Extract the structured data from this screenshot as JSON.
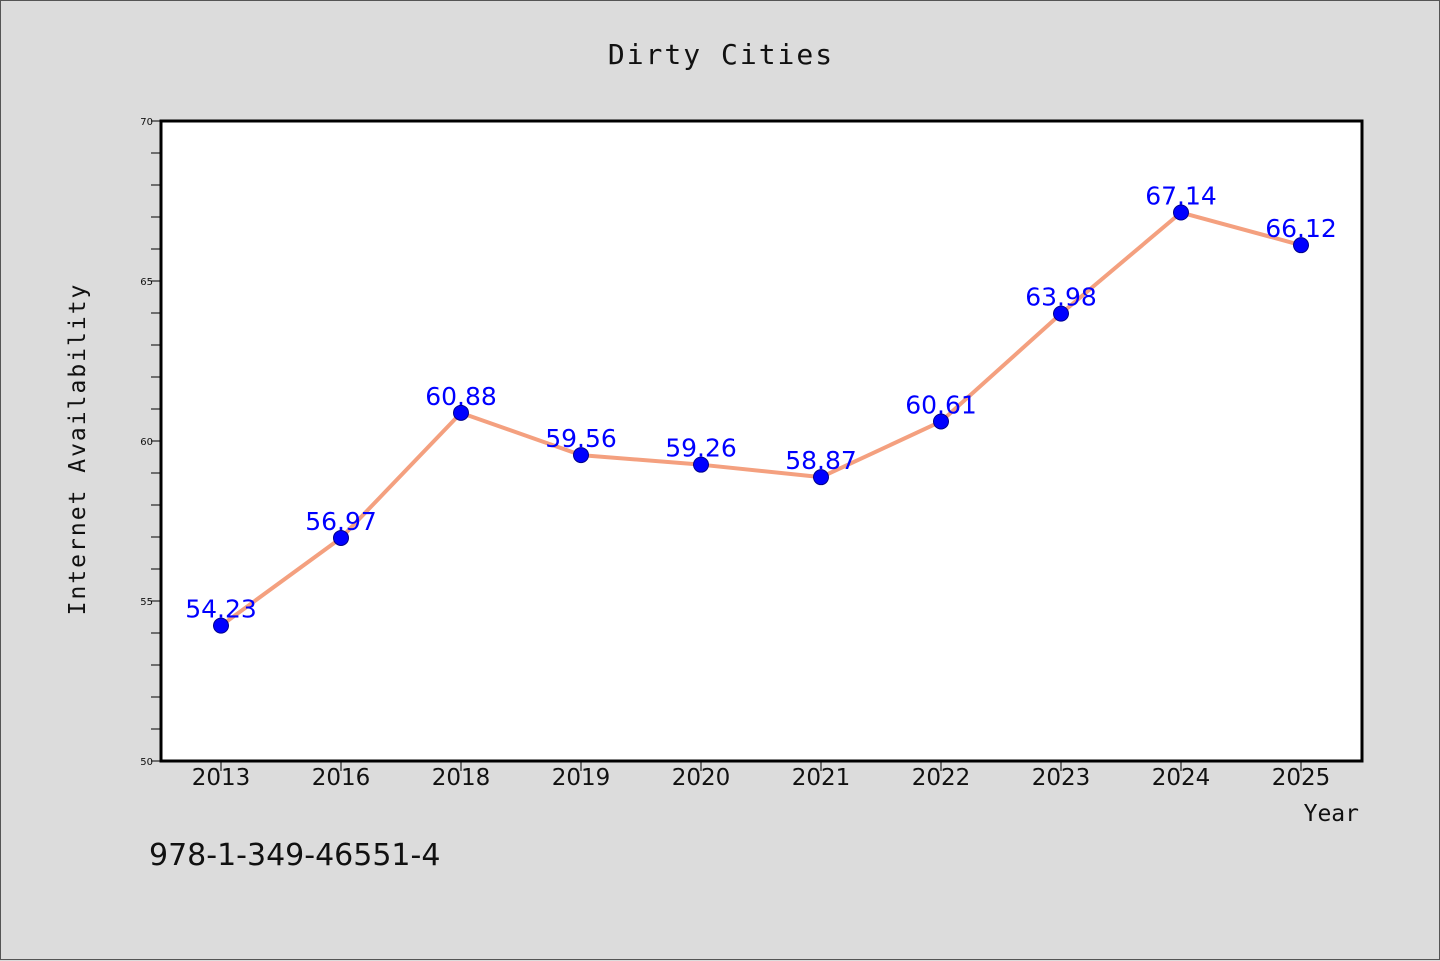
{
  "chart_data": {
    "type": "line",
    "title": "Dirty Cities",
    "xlabel": "Year",
    "ylabel": "Internet Availability",
    "categories": [
      "2013",
      "2016",
      "2018",
      "2019",
      "2020",
      "2021",
      "2022",
      "2023",
      "2024",
      "2025"
    ],
    "series": [
      {
        "values": [
          54.23,
          56.97,
          60.88,
          59.56,
          59.26,
          58.87,
          60.61,
          63.98,
          67.14,
          66.12
        ],
        "line_color": "#f4a07f",
        "marker_color": "#0000ff"
      }
    ],
    "data_labels": [
      "54.23",
      "56.97",
      "60.88",
      "59.56",
      "59.26",
      "58.87",
      "60.61",
      "63.98",
      "67.14",
      "66.12"
    ],
    "ylim": [
      50,
      70
    ],
    "yticks": [
      "50",
      "55",
      "60",
      "65",
      "70"
    ],
    "grid": false,
    "legend": "none",
    "plot_background": "#ffffff",
    "figure_background": "#dcdcdc"
  },
  "footer": {
    "isbn": "978-1-349-46551-4"
  }
}
